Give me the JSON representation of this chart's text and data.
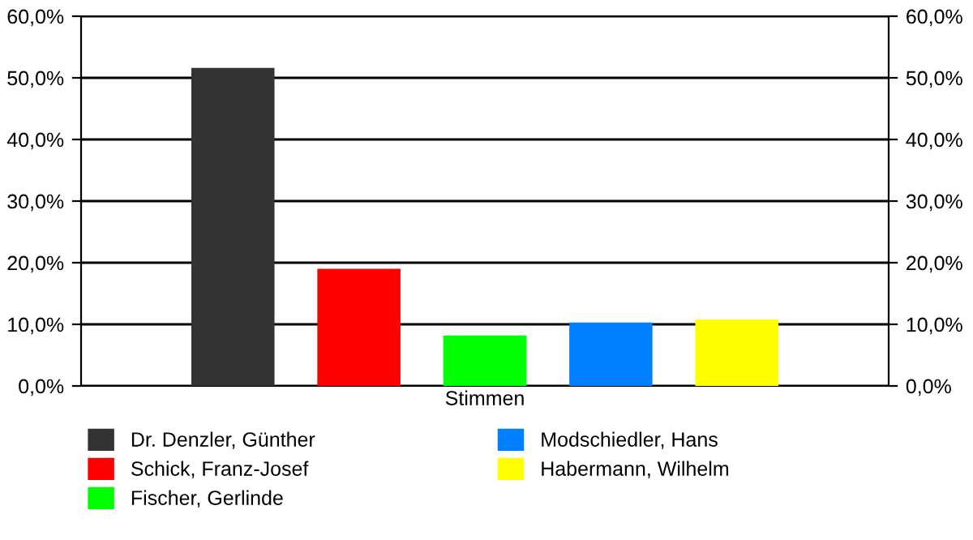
{
  "chart_data": {
    "type": "bar",
    "categories": [
      "Stimmen"
    ],
    "series": [
      {
        "name": "Dr. Denzler, Günther",
        "color": "#333333",
        "values": [
          51.6
        ]
      },
      {
        "name": "Schick, Franz-Josef",
        "color": "#ff0000",
        "values": [
          19.0
        ]
      },
      {
        "name": "Fischer, Gerlinde",
        "color": "#00ff00",
        "values": [
          8.2
        ]
      },
      {
        "name": "Modschiedler, Hans",
        "color": "#0080ff",
        "values": [
          10.3
        ]
      },
      {
        "name": "Habermann, Wilhelm",
        "color": "#ffff00",
        "values": [
          10.8
        ]
      }
    ],
    "ylim": [
      0,
      60
    ],
    "yticks": [
      {
        "value": 0,
        "label": "0,0%"
      },
      {
        "value": 10,
        "label": "10,0%"
      },
      {
        "value": 20,
        "label": "20,0%"
      },
      {
        "value": 30,
        "label": "30,0%"
      },
      {
        "value": 40,
        "label": "40,0%"
      },
      {
        "value": 50,
        "label": "50,0%"
      },
      {
        "value": 60,
        "label": "60,0%"
      }
    ],
    "grid": "y",
    "legend": "bottom"
  }
}
